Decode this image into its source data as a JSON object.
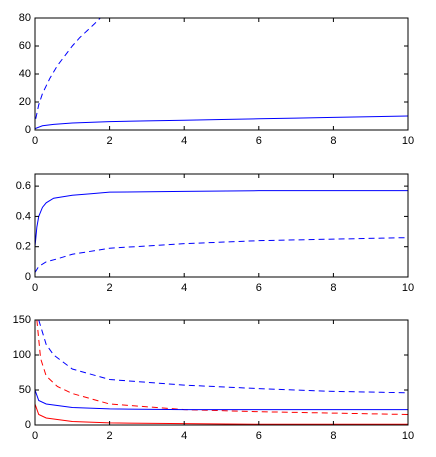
{
  "chart_data": [
    {
      "type": "line",
      "xlim": [
        0,
        10
      ],
      "xticks": [
        0,
        2,
        4,
        6,
        8,
        10
      ],
      "ylim": [
        0,
        80
      ],
      "yticks": [
        0,
        20,
        40,
        60,
        80
      ],
      "series": [
        {
          "color": "#0000ff",
          "style": "dashed",
          "x": [
            0.02,
            0.1,
            0.2,
            0.4,
            0.6,
            0.8,
            1.0,
            1.2,
            1.4,
            1.6,
            1.75
          ],
          "values": [
            8,
            18,
            26,
            37,
            46,
            53,
            60,
            66,
            71,
            76,
            80
          ]
        },
        {
          "color": "#0000ff",
          "style": "solid",
          "x": [
            0,
            0.2,
            0.5,
            1,
            2,
            3,
            4,
            5,
            6,
            7,
            8,
            10
          ],
          "values": [
            1,
            3,
            4,
            5,
            6,
            6.5,
            7,
            7.5,
            8,
            8.5,
            9,
            10
          ]
        }
      ]
    },
    {
      "type": "line",
      "xlim": [
        0,
        10
      ],
      "xticks": [
        0,
        2,
        4,
        6,
        8,
        10
      ],
      "ylim": [
        0,
        0.68
      ],
      "yticks": [
        0,
        0.2,
        0.4,
        0.6
      ],
      "series": [
        {
          "color": "#0000ff",
          "style": "solid",
          "x": [
            0,
            0.05,
            0.1,
            0.2,
            0.3,
            0.5,
            1,
            1.5,
            2,
            4,
            6,
            8,
            10
          ],
          "values": [
            0.2,
            0.33,
            0.4,
            0.46,
            0.49,
            0.52,
            0.54,
            0.55,
            0.56,
            0.565,
            0.57,
            0.57,
            0.57
          ]
        },
        {
          "color": "#0000ff",
          "style": "dashed",
          "x": [
            0,
            0.1,
            0.3,
            0.6,
            1,
            2,
            4,
            6,
            8,
            10
          ],
          "values": [
            0.03,
            0.07,
            0.1,
            0.12,
            0.15,
            0.19,
            0.22,
            0.24,
            0.25,
            0.26
          ]
        }
      ]
    },
    {
      "type": "line",
      "xlim": [
        0,
        10
      ],
      "xticks": [
        0,
        2,
        4,
        6,
        8,
        10
      ],
      "ylim": [
        0,
        150
      ],
      "yticks": [
        0,
        50,
        100,
        150
      ],
      "series": [
        {
          "color": "#0000ff",
          "style": "dashed",
          "x": [
            0.1,
            0.3,
            0.5,
            1,
            2,
            4,
            6,
            8,
            10
          ],
          "values": [
            150,
            115,
            100,
            80,
            65,
            57,
            52,
            48,
            46
          ]
        },
        {
          "color": "#ff0000",
          "style": "dashed",
          "x": [
            0.05,
            0.15,
            0.3,
            0.6,
            1,
            2,
            4,
            6,
            8,
            10
          ],
          "values": [
            150,
            95,
            70,
            55,
            45,
            30,
            22,
            19,
            17,
            15
          ]
        },
        {
          "color": "#0000ff",
          "style": "solid",
          "x": [
            0,
            0.1,
            0.3,
            1,
            2,
            4,
            6,
            8,
            10
          ],
          "values": [
            50,
            35,
            30,
            25,
            23,
            22,
            22,
            22,
            22
          ]
        },
        {
          "color": "#ff0000",
          "style": "solid",
          "x": [
            0,
            0.1,
            0.3,
            1,
            2,
            4,
            6,
            8,
            10
          ],
          "values": [
            30,
            15,
            10,
            5,
            3,
            2,
            1,
            1,
            1
          ]
        }
      ]
    }
  ]
}
